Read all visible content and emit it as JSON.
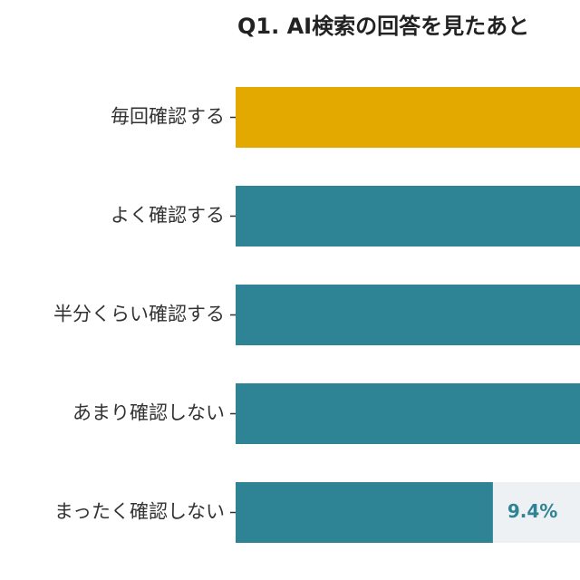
{
  "chart_data": {
    "type": "bar",
    "orientation": "horizontal",
    "title": "Q1. AI検索の回答を見たあと",
    "categories": [
      "毎回確認する",
      "よく確認する",
      "半分くらい確認する",
      "あまり確認しない",
      "まったく確認しない"
    ],
    "series": [
      {
        "values": [
          null,
          null,
          null,
          null,
          9.4
        ]
      }
    ],
    "data_labels": [
      "",
      "",
      "",
      "",
      "9.4%"
    ],
    "highlight_index": 0,
    "colors": {
      "highlight": "#e3a900",
      "bar": "#2e8495",
      "track": "#eef1f4",
      "label": "#333333",
      "value_label": "#2e8495"
    },
    "x_axis": {
      "visible": false
    },
    "grid": false,
    "legend": "none",
    "note": "Bars for the first four categories extend past the cropped right edge; their values are not visible."
  }
}
